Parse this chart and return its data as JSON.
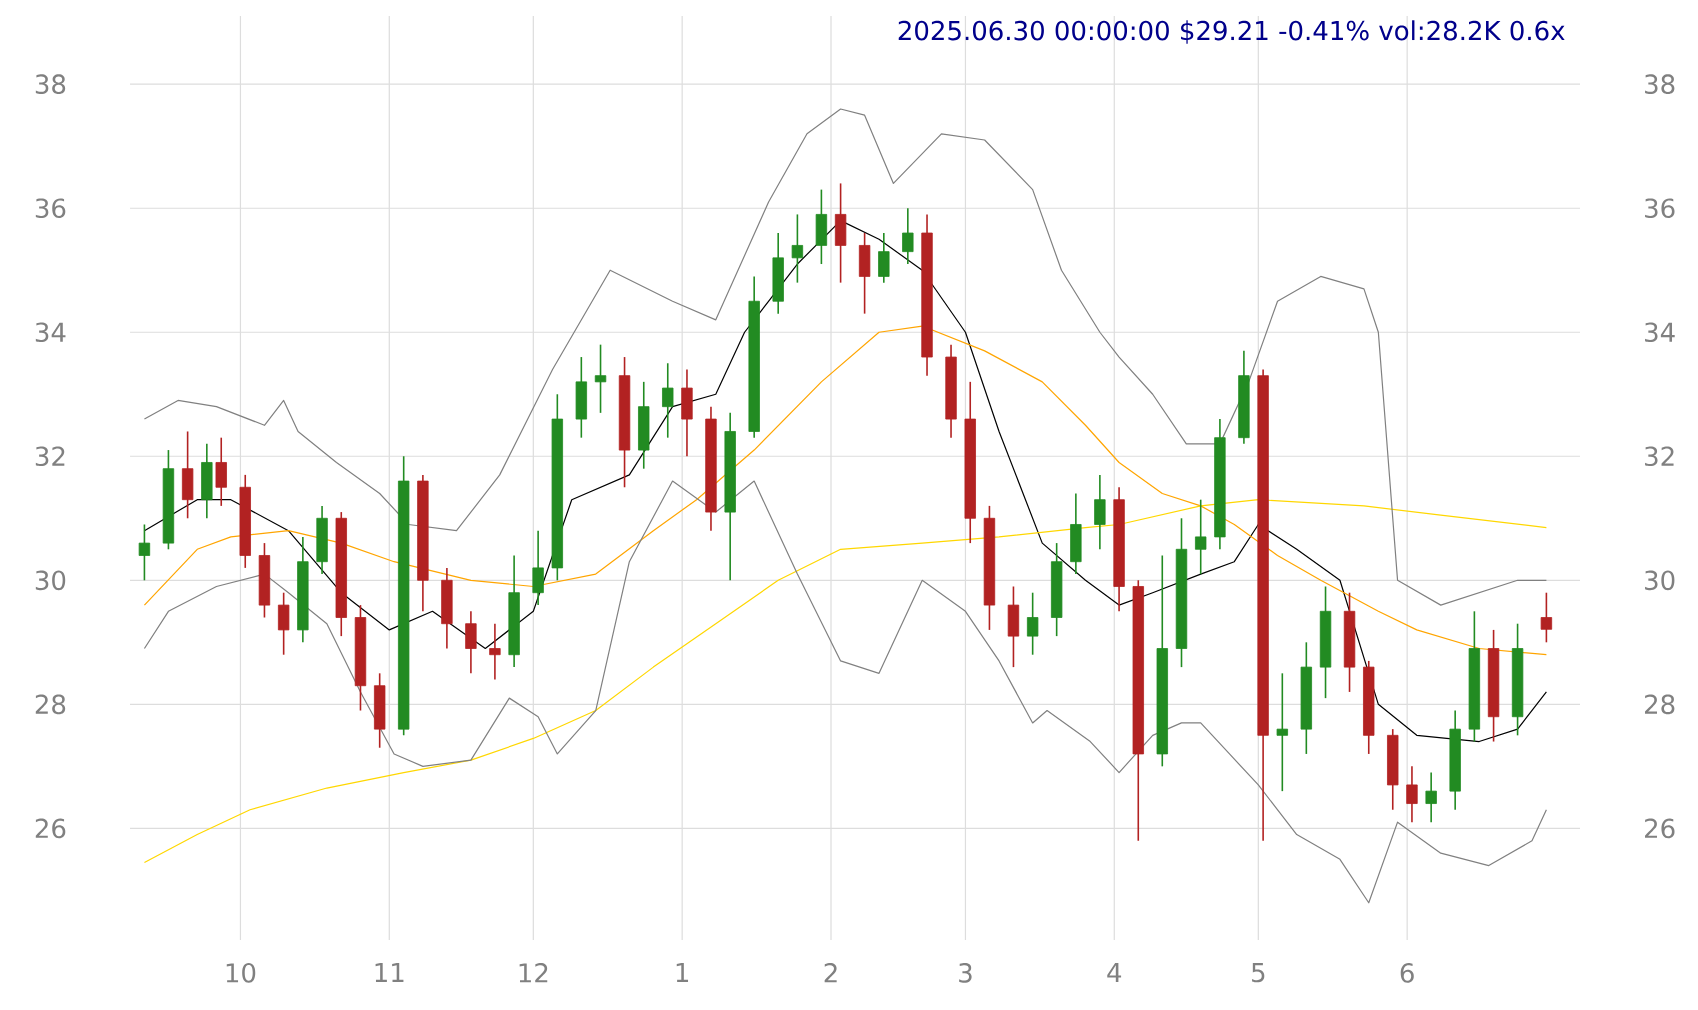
{
  "chart_data": {
    "type": "candlestick",
    "title": "2025.06.30 00:00:00 $29.21 -0.41% vol:28.2K 0.6x",
    "x": [
      "2024-09-11",
      "2024-09-16",
      "2024-09-20",
      "2024-09-24",
      "2024-09-27",
      "2024-10-02",
      "2024-10-06",
      "2024-10-10",
      "2024-10-14",
      "2024-10-18",
      "2024-10-22",
      "2024-10-26",
      "2024-10-30",
      "2024-11-04",
      "2024-11-08",
      "2024-11-13",
      "2024-11-18",
      "2024-11-23",
      "2024-11-27",
      "2024-12-02",
      "2024-12-06",
      "2024-12-11",
      "2024-12-15",
      "2024-12-20",
      "2024-12-24",
      "2024-12-29",
      "2025-01-02",
      "2025-01-07",
      "2025-01-11",
      "2025-01-16",
      "2025-01-21",
      "2025-01-25",
      "2025-01-30",
      "2025-02-03",
      "2025-02-08",
      "2025-02-12",
      "2025-02-17",
      "2025-02-21",
      "2025-02-26",
      "2025-03-02",
      "2025-03-06",
      "2025-03-11",
      "2025-03-15",
      "2025-03-20",
      "2025-03-24",
      "2025-03-29",
      "2025-04-02",
      "2025-04-06",
      "2025-04-11",
      "2025-04-15",
      "2025-04-19",
      "2025-04-23",
      "2025-04-28",
      "2025-05-02",
      "2025-05-06",
      "2025-05-11",
      "2025-05-15",
      "2025-05-20",
      "2025-05-24",
      "2025-05-29",
      "2025-06-02",
      "2025-06-06",
      "2025-06-11",
      "2025-06-15",
      "2025-06-19",
      "2025-06-24",
      "2025-06-30"
    ],
    "ohlc": [
      [
        30.4,
        30.9,
        30.0,
        30.6
      ],
      [
        30.6,
        32.1,
        30.5,
        31.8
      ],
      [
        31.8,
        32.4,
        31.0,
        31.3
      ],
      [
        31.3,
        32.2,
        31.0,
        31.9
      ],
      [
        31.9,
        32.3,
        31.2,
        31.5
      ],
      [
        31.5,
        31.7,
        30.2,
        30.4
      ],
      [
        30.4,
        30.6,
        29.4,
        29.6
      ],
      [
        29.6,
        29.8,
        28.8,
        29.2
      ],
      [
        29.2,
        30.7,
        29.0,
        30.3
      ],
      [
        30.3,
        31.2,
        30.1,
        31.0
      ],
      [
        31.0,
        31.1,
        29.1,
        29.4
      ],
      [
        29.4,
        29.6,
        27.9,
        28.3
      ],
      [
        28.3,
        28.5,
        27.3,
        27.6
      ],
      [
        27.6,
        32.0,
        27.5,
        31.6
      ],
      [
        31.6,
        31.7,
        29.5,
        30.0
      ],
      [
        30.0,
        30.2,
        28.9,
        29.3
      ],
      [
        29.3,
        29.5,
        28.5,
        28.9
      ],
      [
        28.9,
        29.3,
        28.4,
        28.8
      ],
      [
        28.8,
        30.4,
        28.6,
        29.8
      ],
      [
        29.8,
        30.8,
        29.6,
        30.2
      ],
      [
        30.2,
        33.0,
        30.0,
        32.6
      ],
      [
        32.6,
        33.6,
        32.3,
        33.2
      ],
      [
        33.2,
        33.8,
        32.7,
        33.3
      ],
      [
        33.3,
        33.6,
        31.5,
        32.1
      ],
      [
        32.1,
        33.2,
        31.8,
        32.8
      ],
      [
        32.8,
        33.5,
        32.3,
        33.1
      ],
      [
        33.1,
        33.4,
        32.0,
        32.6
      ],
      [
        32.6,
        32.8,
        30.8,
        31.1
      ],
      [
        31.1,
        32.7,
        30.0,
        32.4
      ],
      [
        32.4,
        34.9,
        32.3,
        34.5
      ],
      [
        34.5,
        35.6,
        34.3,
        35.2
      ],
      [
        35.2,
        35.9,
        34.8,
        35.4
      ],
      [
        35.4,
        36.3,
        35.1,
        35.9
      ],
      [
        35.9,
        36.4,
        34.8,
        35.4
      ],
      [
        35.4,
        35.6,
        34.3,
        34.9
      ],
      [
        34.9,
        35.6,
        34.8,
        35.3
      ],
      [
        35.3,
        36.0,
        35.1,
        35.6
      ],
      [
        35.6,
        35.9,
        33.3,
        33.6
      ],
      [
        33.6,
        33.8,
        32.3,
        32.6
      ],
      [
        32.6,
        33.2,
        30.6,
        31.0
      ],
      [
        31.0,
        31.2,
        29.2,
        29.6
      ],
      [
        29.6,
        29.9,
        28.6,
        29.1
      ],
      [
        29.1,
        29.8,
        28.8,
        29.4
      ],
      [
        29.4,
        30.6,
        29.1,
        30.3
      ],
      [
        30.3,
        31.4,
        30.1,
        30.9
      ],
      [
        30.9,
        31.7,
        30.5,
        31.3
      ],
      [
        31.3,
        31.5,
        29.5,
        29.9
      ],
      [
        29.9,
        30.0,
        25.8,
        27.2
      ],
      [
        27.2,
        30.4,
        27.0,
        28.9
      ],
      [
        28.9,
        31.0,
        28.6,
        30.5
      ],
      [
        30.5,
        31.3,
        30.1,
        30.7
      ],
      [
        30.7,
        32.6,
        30.5,
        32.3
      ],
      [
        32.3,
        33.7,
        32.2,
        33.3
      ],
      [
        33.3,
        33.4,
        25.8,
        27.5
      ],
      [
        27.5,
        28.5,
        26.6,
        27.6
      ],
      [
        27.6,
        29.0,
        27.2,
        28.6
      ],
      [
        28.6,
        29.9,
        28.1,
        29.5
      ],
      [
        29.5,
        29.8,
        28.2,
        28.6
      ],
      [
        28.6,
        28.7,
        27.2,
        27.5
      ],
      [
        27.5,
        27.6,
        26.3,
        26.7
      ],
      [
        26.7,
        27.0,
        26.1,
        26.4
      ],
      [
        26.4,
        26.9,
        26.1,
        26.6
      ],
      [
        26.6,
        27.9,
        26.3,
        27.6
      ],
      [
        27.6,
        29.5,
        27.4,
        28.9
      ],
      [
        28.9,
        29.2,
        27.4,
        27.8
      ],
      [
        27.8,
        29.3,
        27.5,
        28.9
      ],
      [
        29.4,
        29.8,
        29.0,
        29.21
      ]
    ],
    "colors": [
      "#228b22",
      "#228b22",
      "#b22222",
      "#228b22",
      "#b22222",
      "#b22222",
      "#b22222",
      "#b22222",
      "#228b22",
      "#228b22",
      "#b22222",
      "#b22222",
      "#b22222",
      "#228b22",
      "#b22222",
      "#b22222",
      "#b22222",
      "#b22222",
      "#228b22",
      "#228b22",
      "#228b22",
      "#228b22",
      "#228b22",
      "#b22222",
      "#228b22",
      "#228b22",
      "#b22222",
      "#b22222",
      "#228b22",
      "#228b22",
      "#228b22",
      "#228b22",
      "#228b22",
      "#b22222",
      "#b22222",
      "#228b22",
      "#228b22",
      "#b22222",
      "#b22222",
      "#b22222",
      "#b22222",
      "#b22222",
      "#228b22",
      "#228b22",
      "#228b22",
      "#228b22",
      "#b22222",
      "#b22222",
      "#228b22",
      "#228b22",
      "#228b22",
      "#228b22",
      "#228b22",
      "#b22222",
      "#228b22",
      "#228b22",
      "#228b22",
      "#b22222",
      "#b22222",
      "#b22222",
      "#b22222",
      "#228b22",
      "#228b22",
      "#228b22",
      "#b22222",
      "#228b22",
      "#b22222"
    ],
    "series": [
      {
        "type": "line",
        "color": "#000000",
        "x": [
          "2024-09-11",
          "2024-09-22",
          "2024-09-29",
          "2024-10-11",
          "2024-10-22",
          "2024-11-01",
          "2024-11-10",
          "2024-11-21",
          "2024-12-01",
          "2024-12-09",
          "2024-12-21",
          "2024-12-30",
          "2025-01-08",
          "2025-01-14",
          "2025-01-25",
          "2025-02-03",
          "2025-02-11",
          "2025-02-20",
          "2025-03-01",
          "2025-03-08",
          "2025-03-17",
          "2025-03-26",
          "2025-04-02",
          "2025-04-09",
          "2025-04-19",
          "2025-04-26",
          "2025-05-01",
          "2025-05-09",
          "2025-05-18",
          "2025-05-26",
          "2025-06-03",
          "2025-06-16",
          "2025-06-24",
          "2025-06-30"
        ],
        "values": [
          30.8,
          31.3,
          31.3,
          30.8,
          29.8,
          29.2,
          29.5,
          28.9,
          29.5,
          31.3,
          31.7,
          32.8,
          33.0,
          34.0,
          35.1,
          35.8,
          35.5,
          35.0,
          34.0,
          32.4,
          30.6,
          30.0,
          29.6,
          29.8,
          30.1,
          30.3,
          30.9,
          30.5,
          30.0,
          28.0,
          27.5,
          27.4,
          27.6,
          28.2
        ]
      },
      {
        "type": "line",
        "color": "#ffa500",
        "x": [
          "2024-09-11",
          "2024-09-22",
          "2024-09-29",
          "2024-10-11",
          "2024-10-22",
          "2024-11-02",
          "2024-11-18",
          "2024-12-01",
          "2024-12-14",
          "2024-12-26",
          "2025-01-04",
          "2025-01-16",
          "2025-01-30",
          "2025-02-11",
          "2025-02-20",
          "2025-03-05",
          "2025-03-17",
          "2025-03-26",
          "2025-04-02",
          "2025-04-11",
          "2025-04-19",
          "2025-04-26",
          "2025-05-05",
          "2025-05-14",
          "2025-05-26",
          "2025-06-03",
          "2025-06-16",
          "2025-06-30"
        ],
        "values": [
          29.6,
          30.5,
          30.7,
          30.8,
          30.6,
          30.3,
          30.0,
          29.9,
          30.1,
          30.8,
          31.3,
          32.1,
          33.2,
          34.0,
          34.1,
          33.7,
          33.2,
          32.5,
          31.9,
          31.4,
          31.2,
          30.9,
          30.4,
          30.0,
          29.5,
          29.2,
          28.9,
          28.8
        ]
      },
      {
        "type": "line",
        "color": "#ffd700",
        "x": [
          "2024-09-11",
          "2024-09-22",
          "2024-10-03",
          "2024-10-19",
          "2024-11-04",
          "2024-11-18",
          "2024-12-01",
          "2024-12-14",
          "2024-12-26",
          "2025-01-08",
          "2025-01-21",
          "2025-02-03",
          "2025-02-20",
          "2025-03-08",
          "2025-03-26",
          "2025-04-02",
          "2025-04-19",
          "2025-05-01",
          "2025-05-23",
          "2025-06-08",
          "2025-06-30"
        ],
        "values": [
          25.45,
          25.9,
          26.3,
          26.65,
          26.9,
          27.1,
          27.45,
          27.9,
          28.6,
          29.3,
          30.0,
          30.5,
          30.6,
          30.7,
          30.85,
          30.9,
          31.2,
          31.3,
          31.2,
          31.05,
          30.85
        ]
      },
      {
        "type": "line",
        "color": "#808080",
        "x": [
          "2024-09-11",
          "2024-09-18",
          "2024-09-26",
          "2024-10-06",
          "2024-10-10",
          "2024-10-13",
          "2024-10-21",
          "2024-10-30",
          "2024-11-05",
          "2024-11-15",
          "2024-11-24",
          "2024-12-05",
          "2024-12-17",
          "2024-12-30",
          "2025-01-08",
          "2025-01-19",
          "2025-01-27",
          "2025-02-03",
          "2025-02-08",
          "2025-02-14",
          "2025-02-24",
          "2025-03-05",
          "2025-03-15",
          "2025-03-21",
          "2025-03-29",
          "2025-04-02",
          "2025-04-09",
          "2025-04-16",
          "2025-04-23",
          "2025-04-29",
          "2025-05-05",
          "2025-05-14",
          "2025-05-23",
          "2025-05-26",
          "2025-05-30",
          "2025-06-08",
          "2025-06-24",
          "2025-06-30"
        ],
        "values": [
          32.6,
          32.9,
          32.8,
          32.5,
          32.9,
          32.4,
          31.9,
          31.4,
          30.9,
          30.8,
          31.7,
          33.4,
          35.0,
          34.5,
          34.2,
          36.1,
          37.2,
          37.6,
          37.5,
          36.4,
          37.2,
          37.1,
          36.3,
          35.0,
          34.0,
          33.6,
          33.0,
          32.2,
          32.2,
          33.2,
          34.5,
          34.9,
          34.7,
          34.0,
          30.0,
          29.6,
          30.0,
          30.0
        ]
      },
      {
        "type": "line",
        "color": "#808080",
        "x": [
          "2024-09-11",
          "2024-09-16",
          "2024-09-26",
          "2024-10-06",
          "2024-10-11",
          "2024-10-19",
          "2024-10-26",
          "2024-11-02",
          "2024-11-08",
          "2024-11-18",
          "2024-11-26",
          "2024-12-02",
          "2024-12-06",
          "2024-12-14",
          "2024-12-21",
          "2024-12-30",
          "2025-01-08",
          "2025-01-16",
          "2025-01-25",
          "2025-02-03",
          "2025-02-11",
          "2025-02-20",
          "2025-03-01",
          "2025-03-08",
          "2025-03-15",
          "2025-03-18",
          "2025-03-27",
          "2025-04-02",
          "2025-04-09",
          "2025-04-15",
          "2025-04-19",
          "2025-04-25",
          "2025-05-01",
          "2025-05-09",
          "2025-05-18",
          "2025-05-24",
          "2025-05-30",
          "2025-06-08",
          "2025-06-18",
          "2025-06-27",
          "2025-06-30"
        ],
        "values": [
          28.9,
          29.5,
          29.9,
          30.1,
          29.8,
          29.3,
          28.2,
          27.2,
          27.0,
          27.1,
          28.1,
          27.8,
          27.2,
          27.9,
          30.3,
          31.6,
          31.1,
          31.6,
          30.1,
          28.7,
          28.5,
          30.0,
          29.5,
          28.7,
          27.7,
          27.9,
          27.4,
          26.9,
          27.5,
          27.7,
          27.7,
          27.2,
          26.7,
          25.9,
          25.5,
          24.8,
          26.1,
          25.6,
          25.4,
          25.8,
          26.3
        ]
      }
    ],
    "xlim": [
      "2024-09-08",
      "2025-07-07"
    ],
    "ylim": [
      24.2,
      39.1
    ],
    "y2lim": [
      24.2,
      39.1
    ],
    "xticks": [
      {
        "value": "2024-10-01",
        "label": "10"
      },
      {
        "value": "2024-11-01",
        "label": "11"
      },
      {
        "value": "2024-12-01",
        "label": "12"
      },
      {
        "value": "2025-01-01",
        "label": "1"
      },
      {
        "value": "2025-02-01",
        "label": "2"
      },
      {
        "value": "2025-03-01",
        "label": "3"
      },
      {
        "value": "2025-04-01",
        "label": "4"
      },
      {
        "value": "2025-05-01",
        "label": "5"
      },
      {
        "value": "2025-06-01",
        "label": "6"
      }
    ],
    "yticks": [
      26,
      28,
      30,
      32,
      34,
      36,
      38
    ],
    "y2ticks": [
      26,
      28,
      30,
      32,
      34,
      36,
      38
    ],
    "grid": true
  }
}
